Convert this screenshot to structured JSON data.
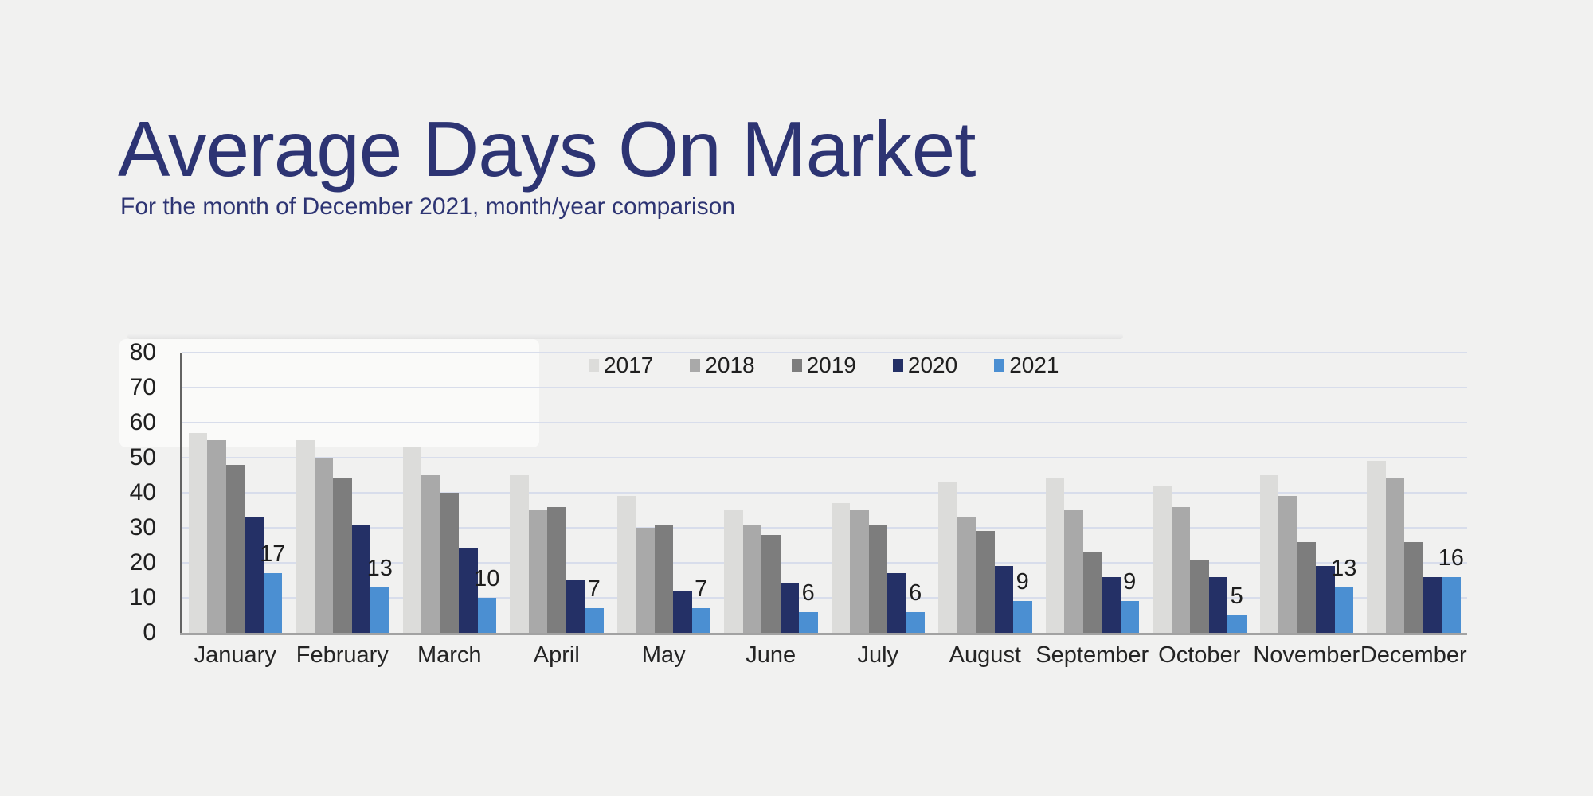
{
  "page": {
    "title": "Average Days On Market",
    "subtitle": "For the month of December 2021, month/year comparison"
  },
  "colors": {
    "background": "#f1f1f0",
    "title_text": "#2d3473",
    "axis_text": "#1f1f1f",
    "gridline": "#d8ddeb",
    "y_axis_line": "#636363",
    "x_axis_line": "#a2a2a2",
    "series_2017": "#dcdcda",
    "series_2018": "#a9a9a9",
    "series_2019": "#7d7d7d",
    "series_2020": "#243066",
    "series_2021": "#4b8fd2"
  },
  "chart_data": {
    "type": "bar",
    "title": "Average Days On Market",
    "subtitle": "For the month of December 2021, month/year comparison",
    "categories": [
      "January",
      "February",
      "March",
      "April",
      "May",
      "June",
      "July",
      "August",
      "September",
      "October",
      "November",
      "December"
    ],
    "series": [
      {
        "name": "2017",
        "color": "#dcdcda",
        "values": [
          57,
          55,
          53,
          45,
          39,
          35,
          37,
          43,
          44,
          42,
          45,
          49
        ],
        "data_labels": false
      },
      {
        "name": "2018",
        "color": "#a9a9a9",
        "values": [
          55,
          50,
          45,
          35,
          30,
          31,
          35,
          33,
          35,
          36,
          39,
          44
        ],
        "data_labels": false
      },
      {
        "name": "2019",
        "color": "#7d7d7d",
        "values": [
          48,
          44,
          40,
          36,
          31,
          28,
          31,
          29,
          23,
          21,
          26,
          26
        ],
        "data_labels": false
      },
      {
        "name": "2020",
        "color": "#243066",
        "values": [
          33,
          31,
          24,
          15,
          12,
          14,
          17,
          19,
          16,
          16,
          19,
          16
        ],
        "data_labels": false
      },
      {
        "name": "2021",
        "color": "#4b8fd2",
        "values": [
          17,
          13,
          10,
          7,
          7,
          6,
          6,
          9,
          9,
          5,
          13,
          16
        ],
        "data_labels": true
      }
    ],
    "xlabel": "",
    "ylabel": "",
    "ylim": [
      0,
      80
    ],
    "ytick_step": 10,
    "grid": true,
    "legend_position": "top-center",
    "legend_entries": [
      "2017",
      "2018",
      "2019",
      "2020",
      "2021"
    ]
  }
}
